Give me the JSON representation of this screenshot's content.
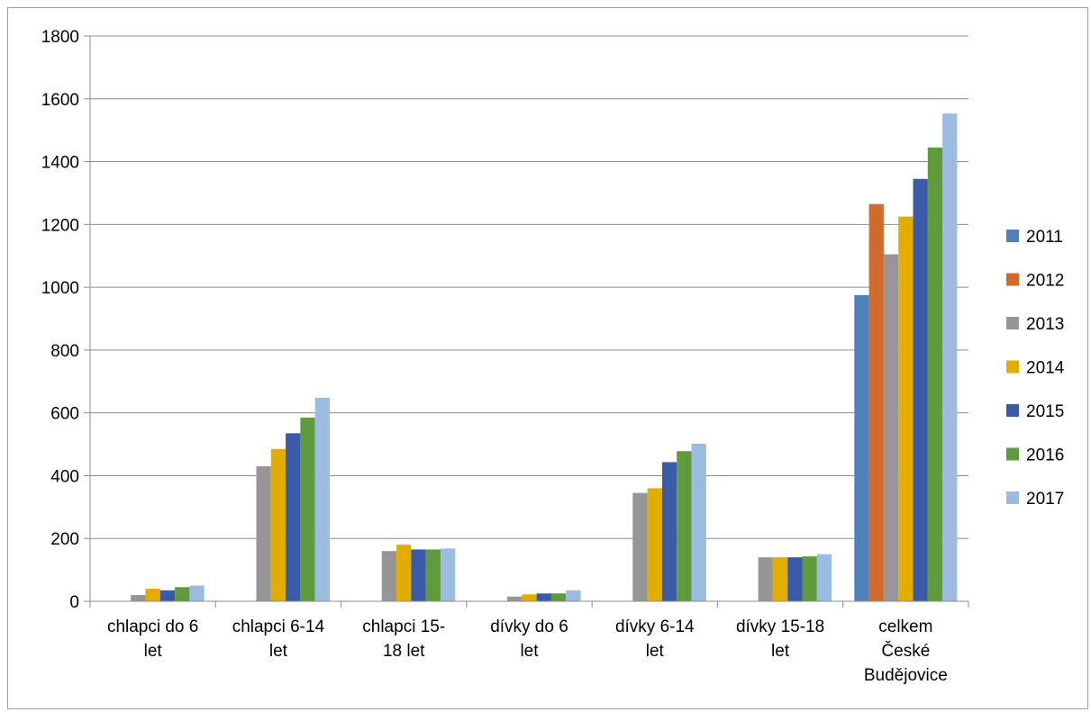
{
  "chart_data": {
    "type": "bar",
    "title": "",
    "xlabel": "",
    "ylabel": "",
    "ylim": [
      0,
      1800
    ],
    "yticks": [
      0,
      200,
      400,
      600,
      800,
      1000,
      1200,
      1400,
      1600,
      1800
    ],
    "grid": true,
    "legend_position": "right",
    "categories": [
      "chlapci do 6 let",
      "chlapci 6-14 let",
      "chlapci 15-18 let",
      "dívky do 6 let",
      "dívky 6-14 let",
      "dívky 15-18 let",
      "celkem České Budějovice"
    ],
    "category_lines": [
      [
        "chlapci do 6",
        "let"
      ],
      [
        "chlapci 6-14",
        "let"
      ],
      [
        "chlapci 15-",
        "18 let"
      ],
      [
        "dívky do 6",
        "let"
      ],
      [
        "dívky 6-14",
        "let"
      ],
      [
        "dívky 15-18",
        "let"
      ],
      [
        "celkem",
        "České",
        "Budějovice"
      ]
    ],
    "series": [
      {
        "name": "2011",
        "color": "#4f81bd",
        "values": [
          0,
          0,
          0,
          0,
          0,
          0,
          975
        ]
      },
      {
        "name": "2012",
        "color": "#d26a2d",
        "values": [
          0,
          0,
          0,
          0,
          0,
          0,
          1265
        ]
      },
      {
        "name": "2013",
        "color": "#969696",
        "values": [
          20,
          430,
          160,
          15,
          345,
          140,
          1105
        ]
      },
      {
        "name": "2014",
        "color": "#e2ac00",
        "values": [
          40,
          485,
          180,
          22,
          360,
          140,
          1225
        ]
      },
      {
        "name": "2015",
        "color": "#3a5ca8",
        "values": [
          35,
          535,
          165,
          25,
          443,
          140,
          1345
        ]
      },
      {
        "name": "2016",
        "color": "#5f9b3d",
        "values": [
          45,
          585,
          165,
          25,
          478,
          143,
          1445
        ]
      },
      {
        "name": "2017",
        "color": "#9bbbe0",
        "values": [
          50,
          648,
          168,
          35,
          502,
          150,
          1553
        ]
      }
    ]
  }
}
